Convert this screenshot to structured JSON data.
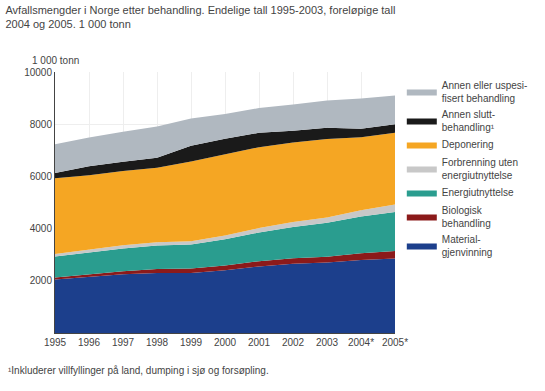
{
  "chart_data": {
    "type": "area",
    "stacked": true,
    "title": "Avfallsmengder i Norge etter behandling. Endelige tall 1995-2003, foreløpige tall\n2004 og 2005. 1 000 tonn",
    "ylabel": "1 000 tonn",
    "annotations": [
      "¹Inkluderer villfyllinger på land, dumping i sjø og forsøpling."
    ],
    "x": [
      1995,
      1996,
      1997,
      1998,
      1999,
      2000,
      2001,
      2002,
      2003,
      2004,
      2005
    ],
    "xlim": [
      1995,
      2005
    ],
    "xticks": [
      1995,
      1996,
      1997,
      1998,
      1999,
      2000,
      2001,
      2002,
      2003,
      {
        "value": 2004,
        "label": "2004*"
      },
      {
        "value": 2005,
        "label": "2005*"
      }
    ],
    "ylim": [
      0,
      10000
    ],
    "yticks": [
      2000,
      4000,
      6000,
      8000,
      10000
    ],
    "grid": true,
    "legend": "right",
    "series": [
      {
        "name": "Material-\ngjenvinning",
        "color": "#1c3f8c",
        "values": [
          2050,
          2150,
          2250,
          2300,
          2300,
          2400,
          2550,
          2650,
          2700,
          2800,
          2850
        ]
      },
      {
        "name": "Biologisk\nbehandling",
        "color": "#8b1a1a",
        "values": [
          80,
          100,
          120,
          150,
          170,
          190,
          200,
          210,
          220,
          260,
          290
        ]
      },
      {
        "name": "Energiutnyttelse",
        "color": "#2a9d8f",
        "values": [
          800,
          830,
          870,
          900,
          920,
          1000,
          1100,
          1200,
          1300,
          1400,
          1500
        ]
      },
      {
        "name": "Forbrenning uten\nenergiutnyttelse",
        "color": "#c8c8c8",
        "values": [
          100,
          110,
          120,
          130,
          130,
          150,
          170,
          190,
          210,
          240,
          280
        ]
      },
      {
        "name": "Deponering",
        "color": "#f5a623",
        "values": [
          2900,
          2850,
          2850,
          2850,
          3050,
          3100,
          3100,
          3050,
          3000,
          2800,
          2750
        ]
      },
      {
        "name": "Annen slutt-\nbehandling¹",
        "color": "#1a1a1a",
        "values": [
          200,
          350,
          350,
          380,
          600,
          600,
          550,
          450,
          430,
          330,
          330
        ]
      },
      {
        "name": "Annen eller uspesi-\nfisert behandling",
        "color": "#b0b8c0",
        "values": [
          1100,
          1100,
          1150,
          1200,
          1050,
          950,
          950,
          1000,
          1050,
          1150,
          1100
        ]
      }
    ]
  }
}
